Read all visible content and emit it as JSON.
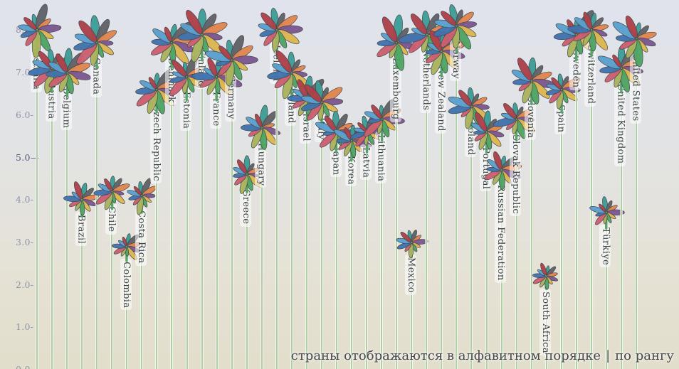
{
  "footer": {
    "alphabetical": "страны отображаются в алфавитном  порядке",
    "separator": "|",
    "by_rank": "по рангу"
  },
  "axis": {
    "tick_suffix": "-",
    "major_tick_suffix": "—",
    "major_tick_value": 5.0,
    "tick_color": "#8d93a9",
    "major_tick_color": "#515a7d"
  },
  "colors": {
    "background_top": "#e0e3ec",
    "background_bottom": "#e2decb",
    "stem": "#aecfa6",
    "flower_stem": "#55a468",
    "petal_outline": "#45464b",
    "label_text": "#3d4146",
    "label_halo": "rgba(255,255,255,0.55)"
  },
  "chart_data": {
    "type": "scatter",
    "marker": "flower",
    "title": "",
    "xlabel": "",
    "ylabel": "",
    "ylim": [
      0,
      8.7
    ],
    "yticks": [
      8.0,
      7.0,
      6.0,
      5.0,
      4.0,
      3.0,
      2.0,
      1.0,
      0.0
    ],
    "grid": false,
    "legend": "none",
    "categories": [
      "Australia",
      "Austria",
      "Belgium",
      "Brazil",
      "Canada",
      "Chile",
      "Colombia",
      "Costa Rica",
      "Czech Republic",
      "Denmark",
      "Estonia",
      "Finland",
      "France",
      "Germany",
      "Greece",
      "Hungary",
      "Iceland",
      "Ireland",
      "Israel",
      "Italy",
      "Japan",
      "Korea",
      "Latvia",
      "Lithuania",
      "Luxembourg",
      "Mexico",
      "Netherlands",
      "New Zealand",
      "Norway",
      "Poland",
      "Portugal",
      "Russian Federation",
      "Slovak Republic",
      "Slovenia",
      "South Africa",
      "Spain",
      "Sweden",
      "Switzerland",
      "Türkiye",
      "United Kingdom",
      "United States"
    ],
    "values": [
      8.0,
      7.1,
      7.0,
      4.0,
      7.7,
      4.2,
      2.9,
      4.1,
      6.6,
      7.7,
      6.9,
      7.9,
      6.9,
      7.3,
      4.6,
      5.7,
      8.0,
      7.0,
      6.4,
      6.3,
      5.6,
      5.4,
      5.6,
      5.9,
      7.7,
      3.0,
      7.9,
      7.5,
      8.1,
      6.2,
      5.6,
      4.7,
      5.9,
      6.8,
      2.2,
      6.6,
      7.9,
      8.0,
      3.7,
      7.1,
      7.8
    ],
    "petal_colors": [
      "#3c9d96",
      "#606266",
      "#e0854d",
      "#7c5690",
      "#dcb54e",
      "#4fa463",
      "#a9b35c",
      "#cc5f6e",
      "#3f72ae",
      "#58a0ce",
      "#ac4149"
    ],
    "petals_per_flower": 11
  }
}
